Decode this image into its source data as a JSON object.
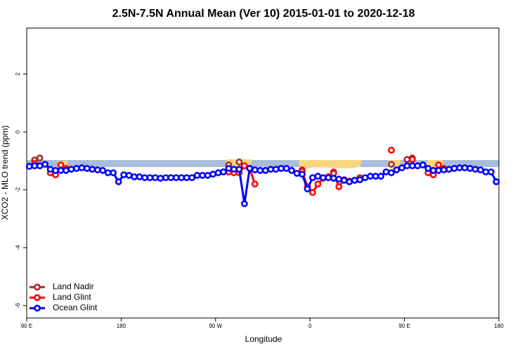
{
  "chart_data": {
    "type": "line",
    "title": "2.5N-7.5N Annual Mean (Ver 10)   2015-01-01 to 2020-12-18",
    "x_label": "Longitude",
    "y_label": "XCO2 - MLO trend (ppm)",
    "xlim": [
      -270,
      180
    ],
    "xticks": [
      {
        "value": -270,
        "label": "90 E"
      },
      {
        "value": -180,
        "label": "180"
      },
      {
        "value": -90,
        "label": "90 W"
      },
      0,
      {
        "value": 90,
        "label": "90 E"
      },
      {
        "value": 180,
        "label": "180"
      }
    ],
    "ylim": [
      -6.43,
      3.59
    ],
    "yticks": [
      2,
      0,
      -2,
      -4,
      -6
    ],
    "legend": "bottom-left",
    "x": [
      -267.5,
      -262.5,
      -257.5,
      -252.5,
      -247.5,
      -242.5,
      -237.5,
      -232.5,
      -227.5,
      -222.5,
      -217.5,
      -212.5,
      -207.5,
      -202.5,
      -197.5,
      -192.5,
      -187.5,
      -182.5,
      -177.5,
      -172.5,
      -167.5,
      -162.5,
      -157.5,
      -152.5,
      -147.5,
      -142.5,
      -137.5,
      -132.5,
      -127.5,
      -122.5,
      -117.5,
      -112.5,
      -107.5,
      -102.5,
      -97.5,
      -92.5,
      -87.5,
      -82.5,
      -77.5,
      -72.5,
      -67.5,
      -62.5,
      -57.5,
      -52.5,
      -47.5,
      -42.5,
      -37.5,
      -32.5,
      -27.5,
      -22.5,
      -17.5,
      -12.5,
      -7.5,
      -2.5,
      2.5,
      7.5,
      12.5,
      17.5,
      22.5,
      27.5,
      32.5,
      37.5,
      42.5,
      47.5,
      52.5,
      57.5,
      62.5,
      67.5,
      72.5,
      77.5,
      82.5,
      87.5,
      92.5,
      97.5,
      102.5,
      107.5,
      112.5,
      117.5,
      122.5,
      127.5,
      132.5,
      137.5,
      142.5,
      147.5,
      152.5,
      157.5,
      162.5,
      167.5,
      172.5,
      177.5
    ],
    "series": [
      {
        "name": "Land Nadir",
        "color": "#a52a2a",
        "values": [
          null,
          -0.97,
          -0.9,
          null,
          null,
          null,
          null,
          null,
          null,
          null,
          null,
          null,
          null,
          null,
          null,
          null,
          null,
          null,
          null,
          null,
          null,
          null,
          null,
          null,
          null,
          null,
          null,
          null,
          null,
          null,
          null,
          null,
          null,
          null,
          null,
          null,
          null,
          null,
          -1.14,
          null,
          -1.04,
          null,
          null,
          null,
          null,
          null,
          null,
          null,
          null,
          null,
          null,
          null,
          -1.31,
          null,
          null,
          null,
          null,
          null,
          -1.38,
          null,
          null,
          null,
          null,
          null,
          null,
          null,
          null,
          null,
          null,
          -1.12,
          null,
          null,
          -0.95,
          -0.9,
          null,
          null,
          null,
          null,
          null,
          null,
          null,
          null,
          null,
          null,
          null,
          null,
          null,
          null,
          null,
          null
        ]
      },
      {
        "name": "Land Glint",
        "color": "#ff0000",
        "values": [
          null,
          -1.09,
          null,
          null,
          -1.41,
          -1.48,
          -1.14,
          -1.26,
          null,
          null,
          null,
          null,
          null,
          null,
          null,
          null,
          null,
          null,
          null,
          null,
          null,
          null,
          null,
          null,
          null,
          null,
          null,
          null,
          null,
          null,
          null,
          null,
          null,
          null,
          null,
          null,
          null,
          null,
          -1.38,
          -1.41,
          -1.41,
          -1.17,
          -1.26,
          -1.8,
          null,
          null,
          null,
          null,
          null,
          null,
          null,
          null,
          -1.36,
          -1.89,
          -2.09,
          -1.8,
          -1.6,
          -1.55,
          -1.43,
          -1.89,
          -1.65,
          -1.7,
          -1.67,
          -1.58,
          null,
          null,
          null,
          null,
          null,
          -0.63,
          null,
          null,
          null,
          -0.95,
          null,
          null,
          -1.41,
          -1.48,
          -1.14,
          -1.26,
          null,
          null,
          null,
          null,
          null,
          null,
          null,
          null,
          null,
          null
        ]
      },
      {
        "name": "Ocean Glint",
        "color": "#0000ff",
        "values": [
          -1.19,
          -1.17,
          -1.17,
          -1.12,
          -1.29,
          -1.33,
          -1.33,
          -1.33,
          -1.29,
          -1.26,
          -1.24,
          -1.26,
          -1.29,
          -1.31,
          -1.33,
          -1.41,
          -1.41,
          -1.72,
          -1.48,
          -1.5,
          -1.55,
          -1.55,
          -1.58,
          -1.58,
          -1.58,
          -1.6,
          -1.58,
          -1.58,
          -1.58,
          -1.58,
          -1.58,
          -1.58,
          -1.5,
          -1.5,
          -1.5,
          -1.46,
          -1.41,
          -1.38,
          -1.26,
          -1.29,
          -1.29,
          -2.48,
          -1.26,
          -1.31,
          -1.33,
          -1.33,
          -1.29,
          -1.29,
          -1.26,
          -1.26,
          -1.33,
          -1.43,
          -1.46,
          -1.97,
          -1.58,
          -1.53,
          -1.58,
          -1.58,
          -1.6,
          -1.63,
          -1.67,
          -1.72,
          -1.67,
          -1.65,
          -1.58,
          -1.53,
          -1.53,
          -1.53,
          -1.38,
          -1.41,
          -1.31,
          -1.24,
          -1.17,
          -1.17,
          -1.17,
          -1.14,
          -1.26,
          -1.33,
          -1.33,
          -1.31,
          -1.29,
          -1.26,
          -1.24,
          -1.24,
          -1.26,
          -1.29,
          -1.31,
          -1.38,
          -1.38,
          -1.72
        ]
      }
    ]
  }
}
